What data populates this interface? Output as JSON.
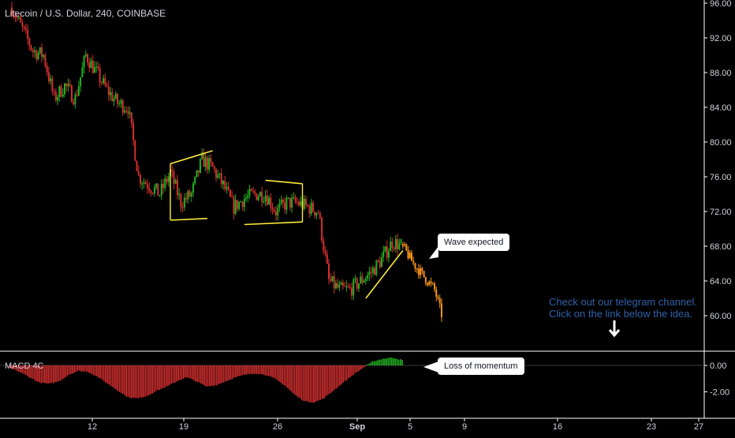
{
  "header": {
    "title": "Litecoin / U.S. Dollar, 240, COINBASE"
  },
  "indicator": {
    "label": "MACD 4C"
  },
  "annotations": {
    "wave_callout": "Wave expected",
    "momentum_callout": "Loss of momentum",
    "promo_line1": "Check out our telegram channel.",
    "promo_line2": "Click on the link below the idea."
  },
  "colors": {
    "up": "#26a69a",
    "green": "#22b022",
    "down": "#d32f2f",
    "projection": "#f7931a",
    "pattern": "#ffeb3b",
    "axis_text": "#d1d4dc",
    "promo": "#2f61a8"
  },
  "chart_data": [
    {
      "type": "candlestick",
      "title": "Litecoin / U.S. Dollar, 240, COINBASE",
      "ylim": [
        56,
        96
      ],
      "y_ticks": [
        "96.00",
        "92.00",
        "88.00",
        "84.00",
        "80.00",
        "76.00",
        "72.00",
        "68.00",
        "64.00",
        "60.00"
      ],
      "x_ticks": [
        "12",
        "19",
        "26",
        "Sep",
        "5",
        "9",
        "16",
        "23",
        "27"
      ],
      "price_path": [
        {
          "day": 0,
          "price": 95.5
        },
        {
          "day": 1,
          "price": 93
        },
        {
          "day": 2,
          "price": 90.5
        },
        {
          "day": 3,
          "price": 90
        },
        {
          "day": 4,
          "price": 85
        },
        {
          "day": 5,
          "price": 86.5
        },
        {
          "day": 6,
          "price": 85
        },
        {
          "day": 7,
          "price": 90
        },
        {
          "day": 8,
          "price": 88
        },
        {
          "day": 9,
          "price": 86
        },
        {
          "day": 10,
          "price": 84.5
        },
        {
          "day": 11,
          "price": 84
        },
        {
          "day": 12,
          "price": 76
        },
        {
          "day": 13,
          "price": 75
        },
        {
          "day": 14,
          "price": 74
        },
        {
          "day": 15,
          "price": 76.5
        },
        {
          "day": 16,
          "price": 73
        },
        {
          "day": 17,
          "price": 74
        },
        {
          "day": 18,
          "price": 78
        },
        {
          "day": 19,
          "price": 77
        },
        {
          "day": 20,
          "price": 75
        },
        {
          "day": 21,
          "price": 72.5
        },
        {
          "day": 22,
          "price": 73.5
        },
        {
          "day": 23,
          "price": 74
        },
        {
          "day": 24,
          "price": 74
        },
        {
          "day": 25,
          "price": 72
        },
        {
          "day": 26,
          "price": 73
        },
        {
          "day": 27,
          "price": 73
        },
        {
          "day": 28,
          "price": 72.5
        },
        {
          "day": 29,
          "price": 72
        },
        {
          "day": 30,
          "price": 64
        },
        {
          "day": 31,
          "price": 63
        },
        {
          "day": 32,
          "price": 63
        },
        {
          "day": 33,
          "price": 64
        },
        {
          "day": 34,
          "price": 65
        },
        {
          "day": 35,
          "price": 66.5
        },
        {
          "day": 36,
          "price": 68.5
        },
        {
          "day": 37,
          "price": 68
        }
      ],
      "projection_path": [
        {
          "day": 37,
          "price": 68
        },
        {
          "day": 38,
          "price": 66
        },
        {
          "day": 39,
          "price": 64.5
        },
        {
          "day": 40,
          "price": 63
        },
        {
          "day": 40.7,
          "price": 60
        }
      ],
      "patterns": [
        {
          "points": [
            [
              15,
              77.5
            ],
            [
              19,
              79
            ]
          ]
        },
        {
          "points": [
            [
              15,
              71
            ],
            [
              18.5,
              71.2
            ]
          ]
        },
        {
          "points": [
            [
              22,
              70.5
            ],
            [
              27.5,
              70.8
            ]
          ]
        },
        {
          "points": [
            [
              24,
              75.6
            ],
            [
              27.5,
              75.2
            ]
          ]
        },
        {
          "points": [
            [
              33.5,
              62
            ],
            [
              37,
              67.5
            ]
          ]
        }
      ]
    },
    {
      "type": "bar",
      "title": "MACD 4C",
      "ylim": [
        -3.6,
        0.8
      ],
      "y_ticks": [
        "0.00",
        "-2.00"
      ],
      "series": [
        {
          "values": [
            -0.2,
            -0.5,
            -0.9,
            -1.3,
            -1.4,
            -1.2,
            -0.7,
            -0.4,
            -0.5,
            -0.9,
            -1.4,
            -1.9,
            -2.4,
            -2.5,
            -2.3,
            -1.9,
            -1.6,
            -1.2,
            -0.9,
            -1.2,
            -1.6,
            -1.5,
            -1.2,
            -0.9,
            -0.7,
            -0.6,
            -0.7,
            -1.0,
            -1.5,
            -2.2,
            -2.7,
            -2.8,
            -2.5,
            -1.9,
            -1.3,
            -0.7,
            -0.2,
            0.3,
            0.5,
            0.6,
            0.4
          ]
        }
      ]
    }
  ]
}
